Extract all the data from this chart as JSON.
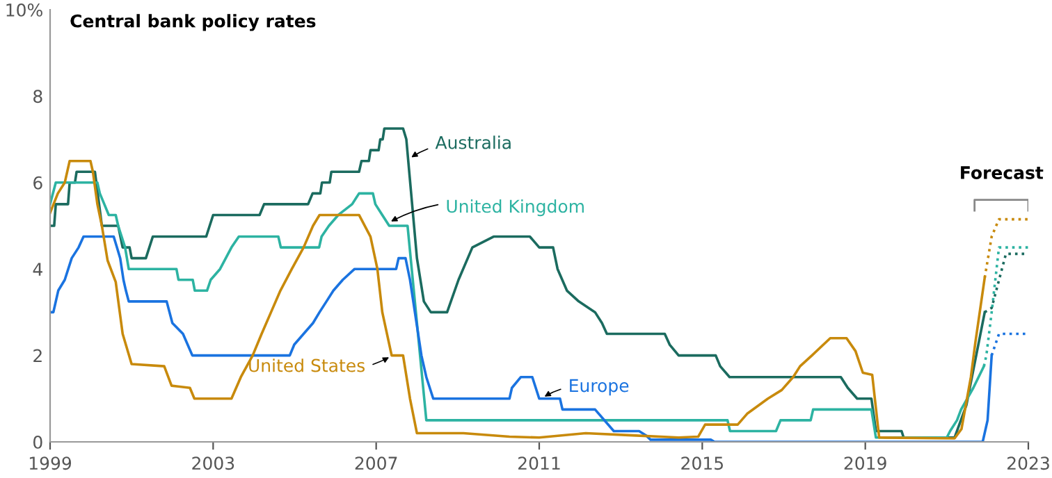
{
  "chart_data": {
    "type": "line",
    "title": "Central bank policy rates",
    "xlim": [
      1999,
      2023
    ],
    "xticks": [
      1999,
      2003,
      2007,
      2011,
      2015,
      2019,
      2023
    ],
    "ylim": [
      0,
      10
    ],
    "yticks": [
      0,
      2,
      4,
      6,
      8,
      {
        "value": 10,
        "label": "10%"
      }
    ],
    "grid": false,
    "legend": false,
    "marker": "none",
    "series": [
      {
        "name": "Australia",
        "color": "#1b6b5f",
        "line_style": "solid",
        "x": [
          1999,
          1999.1,
          1999.14,
          1999.44,
          1999.48,
          1999.61,
          1999.65,
          2000.1,
          2000.27,
          2000.67,
          2000.78,
          2000.95,
          2001.0,
          2001.35,
          2001.52,
          2002.83,
          2003.0,
          2004.14,
          2004.25,
          2005.33,
          2005.44,
          2005.63,
          2005.67,
          2005.86,
          2005.9,
          2006.58,
          2006.64,
          2006.82,
          2006.86,
          2007.06,
          2007.1,
          2007.16,
          2007.2,
          2007.66,
          2007.74,
          2008.0,
          2008.17,
          2008.34,
          2008.74,
          2009.02,
          2009.36,
          2009.88,
          2010.77,
          2011.0,
          2011.34,
          2011.45,
          2011.68,
          2011.97,
          2012.37,
          2012.54,
          2012.66,
          2014.08,
          2014.2,
          2014.42,
          2015.33,
          2015.44,
          2015.67,
          2018.4,
          2018.57,
          2018.8,
          2019.15,
          2019.26,
          2019.89,
          2019.94,
          2021.19,
          2021.48,
          2021.93
        ],
        "values": [
          5.0,
          5.0,
          5.5,
          5.5,
          6.0,
          6.0,
          6.25,
          6.25,
          5.0,
          5.0,
          4.5,
          4.5,
          4.25,
          4.25,
          4.75,
          4.75,
          5.25,
          5.25,
          5.5,
          5.5,
          5.75,
          5.75,
          6.0,
          6.0,
          6.25,
          6.25,
          6.5,
          6.5,
          6.75,
          6.75,
          7.0,
          7.0,
          7.25,
          7.25,
          7.0,
          4.25,
          3.25,
          3.0,
          3.0,
          3.75,
          4.5,
          4.75,
          4.75,
          4.5,
          4.5,
          4.0,
          3.5,
          3.25,
          3.0,
          2.75,
          2.5,
          2.5,
          2.25,
          2.0,
          2.0,
          1.75,
          1.5,
          1.5,
          1.25,
          1.0,
          1.0,
          0.25,
          0.25,
          0.1,
          0.1,
          0.85,
          3.0
        ]
      },
      {
        "name": "United Kingdom",
        "color": "#2db3a2",
        "line_style": "solid",
        "x": [
          1999,
          1999.14,
          2000.16,
          2000.22,
          2000.33,
          2000.44,
          2000.61,
          2000.67,
          2000.84,
          2000.93,
          2002.1,
          2002.15,
          2002.5,
          2002.55,
          2002.85,
          2002.94,
          2003.17,
          2003.45,
          2003.63,
          2004.6,
          2004.66,
          2005.6,
          2005.66,
          2005.84,
          2006.07,
          2006.41,
          2006.58,
          2006.92,
          2006.98,
          2007.15,
          2007.32,
          2007.77,
          2008.23,
          2015.62,
          2015.68,
          2016.81,
          2016.92,
          2017.66,
          2017.72,
          2019.15,
          2019.26,
          2021.0,
          2021.08,
          2021.25,
          2021.35,
          2021.5,
          2021.65,
          2021.91
        ],
        "values": [
          5.5,
          6.0,
          6.0,
          5.75,
          5.5,
          5.25,
          5.25,
          5.0,
          4.5,
          4.0,
          4.0,
          3.75,
          3.75,
          3.5,
          3.5,
          3.75,
          4.0,
          4.5,
          4.75,
          4.75,
          4.5,
          4.5,
          4.75,
          5.0,
          5.25,
          5.5,
          5.75,
          5.75,
          5.5,
          5.25,
          5.0,
          5.0,
          0.5,
          0.5,
          0.25,
          0.25,
          0.5,
          0.5,
          0.75,
          0.75,
          0.1,
          0.1,
          0.25,
          0.5,
          0.75,
          1.0,
          1.25,
          1.75
        ]
      },
      {
        "name": "Europe",
        "color": "#1a73e0",
        "line_style": "solid",
        "x": [
          1999,
          1999.08,
          1999.2,
          1999.36,
          1999.53,
          1999.7,
          1999.82,
          2000.56,
          2000.64,
          2000.72,
          2000.8,
          2000.86,
          2000.93,
          2001.86,
          2002.0,
          2002.26,
          2002.49,
          2004.88,
          2004.99,
          2005.22,
          2005.45,
          2005.61,
          2005.78,
          2005.95,
          2006.18,
          2006.47,
          2007.49,
          2007.55,
          2007.72,
          2007.83,
          2008.11,
          2008.23,
          2008.4,
          2010.27,
          2010.33,
          2010.55,
          2010.83,
          2011.0,
          2011.51,
          2011.57,
          2012.37,
          2012.83,
          2013.45,
          2013.62,
          2013.73,
          2015.21,
          2015.3,
          2021.88,
          2022.0,
          2022.1
        ],
        "values": [
          3.0,
          3.0,
          3.5,
          3.75,
          4.25,
          4.5,
          4.75,
          4.75,
          4.5,
          4.25,
          3.75,
          3.5,
          3.25,
          3.25,
          2.75,
          2.5,
          2.0,
          2.0,
          2.25,
          2.5,
          2.75,
          3.0,
          3.25,
          3.5,
          3.75,
          4.0,
          4.0,
          4.25,
          4.25,
          3.75,
          2.0,
          1.5,
          1.0,
          1.0,
          1.25,
          1.5,
          1.5,
          1.0,
          1.0,
          0.75,
          0.75,
          0.25,
          0.25,
          0.15,
          0.05,
          0.05,
          0.0,
          0.0,
          0.5,
          2.0
        ]
      },
      {
        "name": "United States",
        "color": "#c88a0c",
        "line_style": "solid",
        "x": [
          1999,
          1999.19,
          1999.36,
          1999.48,
          1999.99,
          2000.05,
          2000.16,
          2000.27,
          2000.41,
          2000.61,
          2000.78,
          2001.0,
          2001.8,
          2001.98,
          2002.43,
          2002.54,
          2003.45,
          2003.68,
          2003.97,
          2004.19,
          2004.42,
          2004.65,
          2004.93,
          2005.22,
          2005.45,
          2005.61,
          2006.58,
          2006.86,
          2007.03,
          2007.15,
          2007.38,
          2007.66,
          2007.83,
          2008.0,
          2009.14,
          2010.27,
          2011.0,
          2012.14,
          2013.28,
          2014.42,
          2014.9,
          2015.07,
          2015.87,
          2016.1,
          2016.61,
          2016.95,
          2017.23,
          2017.4,
          2017.69,
          2018.14,
          2018.54,
          2018.76,
          2018.94,
          2019.17,
          2019.34,
          2021.19,
          2021.36,
          2021.59,
          2021.7,
          2021.93
        ],
        "values": [
          5.3,
          5.75,
          6.0,
          6.5,
          6.5,
          6.25,
          5.5,
          5.0,
          4.2,
          3.7,
          2.5,
          1.8,
          1.75,
          1.3,
          1.25,
          1.0,
          1.0,
          1.5,
          2.0,
          2.5,
          3.0,
          3.5,
          4.0,
          4.5,
          5.0,
          5.25,
          5.25,
          4.75,
          4.0,
          3.0,
          2.0,
          2.0,
          1.0,
          0.2,
          0.2,
          0.12,
          0.1,
          0.2,
          0.15,
          0.1,
          0.12,
          0.4,
          0.4,
          0.65,
          1.0,
          1.2,
          1.5,
          1.75,
          2.0,
          2.4,
          2.4,
          2.1,
          1.6,
          1.55,
          0.1,
          0.08,
          0.3,
          1.5,
          2.3,
          3.8
        ]
      },
      {
        "color": "#c88a0c",
        "line_style": "dotted",
        "x": [
          2021.93,
          2022.1,
          2022.21,
          2022.28,
          2023
        ],
        "values": [
          3.8,
          4.75,
          5.0,
          5.15,
          5.15
        ]
      },
      {
        "color": "#2db3a2",
        "line_style": "dotted",
        "x": [
          2021.91,
          2021.97,
          2022.1,
          2022.28,
          2023
        ],
        "values": [
          1.75,
          2.0,
          3.0,
          4.5,
          4.5
        ]
      },
      {
        "color": "#1b6b5f",
        "line_style": "dotted",
        "x": [
          2021.93,
          2022.1,
          2022.45,
          2023
        ],
        "values": [
          3.0,
          3.1,
          4.35,
          4.35
        ]
      },
      {
        "color": "#1a73e0",
        "line_style": "dotted",
        "x": [
          2022.1,
          2022.28,
          2023
        ],
        "values": [
          2.0,
          2.5,
          2.5
        ]
      }
    ],
    "annotations": [
      "Forecast"
    ]
  }
}
